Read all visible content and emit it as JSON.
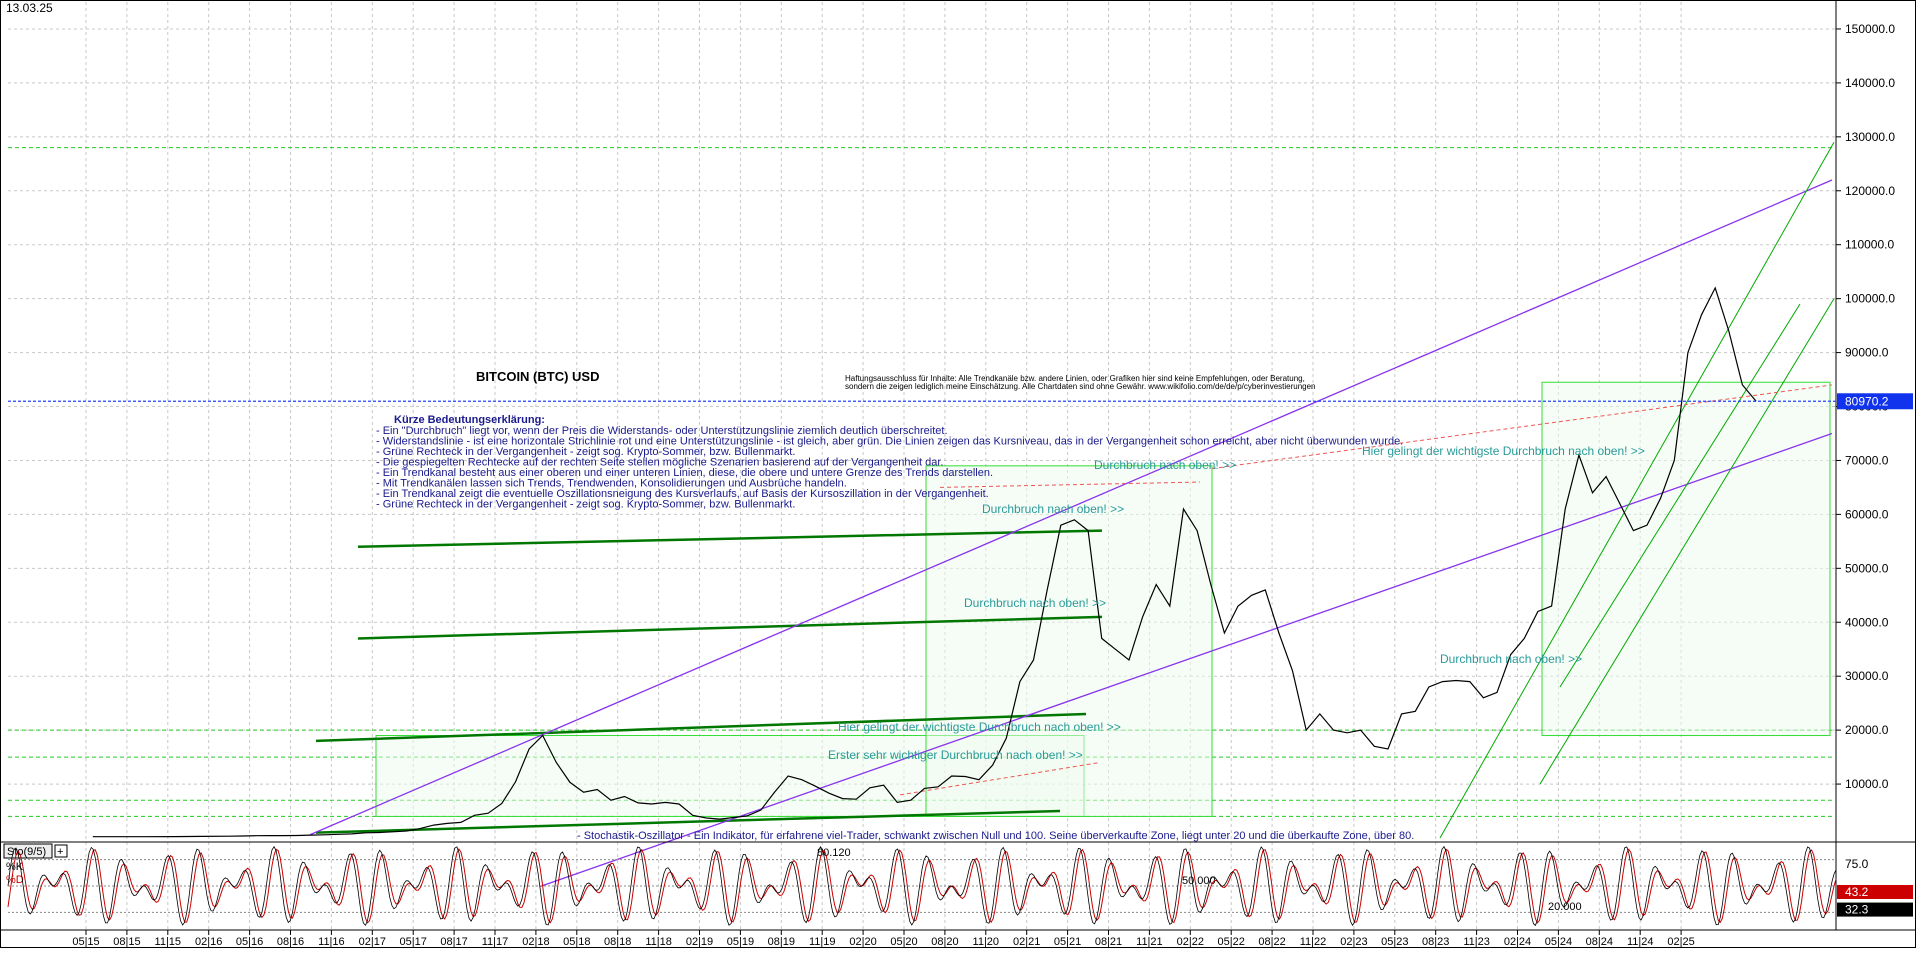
{
  "header": {
    "date": "13.03.25"
  },
  "chart_data": [
    {
      "type": "line",
      "title": "BITCOIN (BTC) USD",
      "ylim": [
        0,
        155000
      ],
      "yticks": [
        10000,
        20000,
        30000,
        40000,
        50000,
        60000,
        70000,
        80000,
        90000,
        100000,
        110000,
        120000,
        130000,
        140000,
        150000
      ],
      "ytick_labels": [
        "10000.0",
        "20000.0",
        "30000.0",
        "40000.0",
        "50000.0",
        "60000.0",
        "70000.0",
        "80000.0",
        "90000.0",
        "100000.0",
        "110000.0",
        "120000.0",
        "130000.0",
        "140000.0",
        "150000.0"
      ],
      "x_tick_labels": [
        "05|15",
        "08|15",
        "11|15",
        "02|16",
        "05|16",
        "08|16",
        "11|16",
        "02|17",
        "05|17",
        "08|17",
        "11|17",
        "02|18",
        "05|18",
        "08|18",
        "11|18",
        "02|19",
        "05|19",
        "08|19",
        "11|19",
        "02|20",
        "05|20",
        "08|20",
        "11|20",
        "02|21",
        "05|21",
        "08|21",
        "11|21",
        "02|22",
        "05|22",
        "08|22",
        "11|22",
        "02|23",
        "05|23",
        "08|23",
        "11|23",
        "02|24",
        "05|24",
        "08|24",
        "11|24",
        "02|25"
      ],
      "last_value": 80970.2,
      "last_value_label": "80970.2",
      "grid": true,
      "series": [
        {
          "color": "#000000",
          "points": [
            [
              0,
              240
            ],
            [
              2,
              240
            ],
            [
              4,
              250
            ],
            [
              6,
              260
            ],
            [
              8,
              290
            ],
            [
              10,
              330
            ],
            [
              11,
              380
            ],
            [
              12,
              430
            ],
            [
              13,
              440
            ],
            [
              14,
              450
            ],
            [
              15,
              470
            ],
            [
              16,
              530
            ],
            [
              17,
              600
            ],
            [
              18,
              680
            ],
            [
              19,
              760
            ],
            [
              20,
              970
            ],
            [
              21,
              1020
            ],
            [
              22,
              1150
            ],
            [
              23,
              1300
            ],
            [
              24,
              1750
            ],
            [
              25,
              2400
            ],
            [
              26,
              2700
            ],
            [
              27,
              2900
            ],
            [
              28,
              4200
            ],
            [
              29,
              4600
            ],
            [
              30,
              6400
            ],
            [
              31,
              10400
            ],
            [
              32,
              16500
            ],
            [
              33,
              19000
            ],
            [
              34,
              14000
            ],
            [
              35,
              10300
            ],
            [
              36,
              8500
            ],
            [
              37,
              9000
            ],
            [
              38,
              7000
            ],
            [
              39,
              7700
            ],
            [
              40,
              6500
            ],
            [
              41,
              6300
            ],
            [
              42,
              6600
            ],
            [
              43,
              6300
            ],
            [
              44,
              4200
            ],
            [
              45,
              3700
            ],
            [
              46,
              3500
            ],
            [
              47,
              3800
            ],
            [
              48,
              4100
            ],
            [
              49,
              5200
            ],
            [
              50,
              8500
            ],
            [
              51,
              11500
            ],
            [
              52,
              10800
            ],
            [
              53,
              9600
            ],
            [
              54,
              8300
            ],
            [
              55,
              7300
            ],
            [
              56,
              7200
            ],
            [
              57,
              9300
            ],
            [
              58,
              9800
            ],
            [
              59,
              6600
            ],
            [
              60,
              7000
            ],
            [
              61,
              9200
            ],
            [
              62,
              9500
            ],
            [
              63,
              11500
            ],
            [
              64,
              11400
            ],
            [
              65,
              10800
            ],
            [
              66,
              13500
            ],
            [
              67,
              18500
            ],
            [
              68,
              29000
            ],
            [
              69,
              33000
            ],
            [
              70,
              46000
            ],
            [
              71,
              58000
            ],
            [
              72,
              59000
            ],
            [
              73,
              57000
            ],
            [
              74,
              37000
            ],
            [
              75,
              35000
            ],
            [
              76,
              33000
            ],
            [
              77,
              41000
            ],
            [
              78,
              47000
            ],
            [
              79,
              43000
            ],
            [
              80,
              61000
            ],
            [
              81,
              57000
            ],
            [
              82,
              47000
            ],
            [
              83,
              38000
            ],
            [
              84,
              43000
            ],
            [
              85,
              45000
            ],
            [
              86,
              46000
            ],
            [
              87,
              38000
            ],
            [
              88,
              31000
            ],
            [
              89,
              20000
            ],
            [
              90,
              23000
            ],
            [
              91,
              20000
            ],
            [
              92,
              19500
            ],
            [
              93,
              20000
            ],
            [
              94,
              17000
            ],
            [
              95,
              16500
            ],
            [
              96,
              23000
            ],
            [
              97,
              23500
            ],
            [
              98,
              28000
            ],
            [
              99,
              29000
            ],
            [
              100,
              29200
            ],
            [
              101,
              29000
            ],
            [
              102,
              26000
            ],
            [
              103,
              27000
            ],
            [
              104,
              34000
            ],
            [
              105,
              37000
            ],
            [
              106,
              42000
            ],
            [
              107,
              43000
            ],
            [
              108,
              61000
            ],
            [
              109,
              71000
            ],
            [
              110,
              64000
            ],
            [
              111,
              67000
            ],
            [
              112,
              62000
            ],
            [
              113,
              57000
            ],
            [
              114,
              58000
            ],
            [
              115,
              63000
            ],
            [
              116,
              70000
            ],
            [
              117,
              90000
            ],
            [
              118,
              97000
            ],
            [
              119,
              102000
            ],
            [
              120,
              94000
            ],
            [
              121,
              84000
            ],
            [
              122,
              80970
            ]
          ]
        }
      ],
      "annotations": {
        "disclaimer_1": "Haftungsausschluss für Inhalte: Alle Trendkanäle bzw. andere Linien, oder Grafiken hier sind keine Empfehlungen, oder Beratung,",
        "disclaimer_2": "sondern die zeigen lediglich meine Einschätzung. Alle Chartdaten sind ohne Gewähr. www.wikifolio.com/de/de/p/cyberinvestierungen",
        "legend_title": "Kürze Bedeutungserklärung:",
        "legend_lines": [
          "- Ein \"Durchbruch\" liegt vor, wenn der Preis die Widerstands- oder Unterstützungslinie ziemlich deutlich überschreitet.",
          "- Widerstandslinie - ist eine horizontale Strichlinie rot und eine Unterstützungslinie - ist gleich, aber grün. Die Linien zeigen das Kursniveau, das in der Vergangenheit schon erreicht, aber nicht überwunden wurde.",
          "- Grüne Rechteck in der Vergangenheit - zeigt sog. Krypto-Sommer, bzw. Bullenmarkt.",
          "- Die gespiegelten Rechtecke auf der rechten Seite stellen mögliche Szenarien basierend auf der Vergangenheit dar.",
          "- Ein Trendkanal besteht aus einer oberen und einer unteren Linien, diese, die obere und untere Grenze des Trends darstellen.",
          "- Mit Trendkanälen lassen sich Trends, Trendwenden, Konsolidierungen und Ausbrüche handeln.",
          "- Ein Trendkanal zeigt die eventuelle Oszillationsneigung des Kursverlaufs, auf Basis der Kursoszillation in der Vergangenheit.",
          "- Grüne Rechteck in der Vergangenheit - zeigt sog. Krypto-Sommer, bzw. Bullenmarkt."
        ],
        "breakout_1": "Durchbruch nach oben! >>",
        "breakout_2": "Durchbruch nach oben! >>",
        "breakout_3": "Durchbruch nach oben! >>",
        "breakout_4": "Durchbruch nach oben! >>",
        "most_important_1": "Hier gelingt der wichtigste Durchbruch nach oben! >>",
        "most_important_2": "Hier gelingt der wichtigste Durchbruch nach oben! >>",
        "first_important": "Erster sehr wichtiger Durchbruch nach oben! >>",
        "stochastic_note": "- Stochastik-Oszillator - Ein Indikator, für erfahrene viel-Trader, schwankt zwischen Null und 100. Seine überverkaufte Zone, liegt unter 20 und die überkaufte Zone, über 80."
      }
    },
    {
      "type": "line",
      "title": "Sto(9/5)",
      "legend": [
        "%K",
        "%D"
      ],
      "ylim": [
        0,
        100
      ],
      "ytick_labels": [
        "75.0",
        "43.2",
        "32.3"
      ],
      "level_labels": [
        "80.120",
        "50.000",
        "20.000"
      ],
      "k_last": 43.2,
      "d_last": 32.3
    }
  ]
}
